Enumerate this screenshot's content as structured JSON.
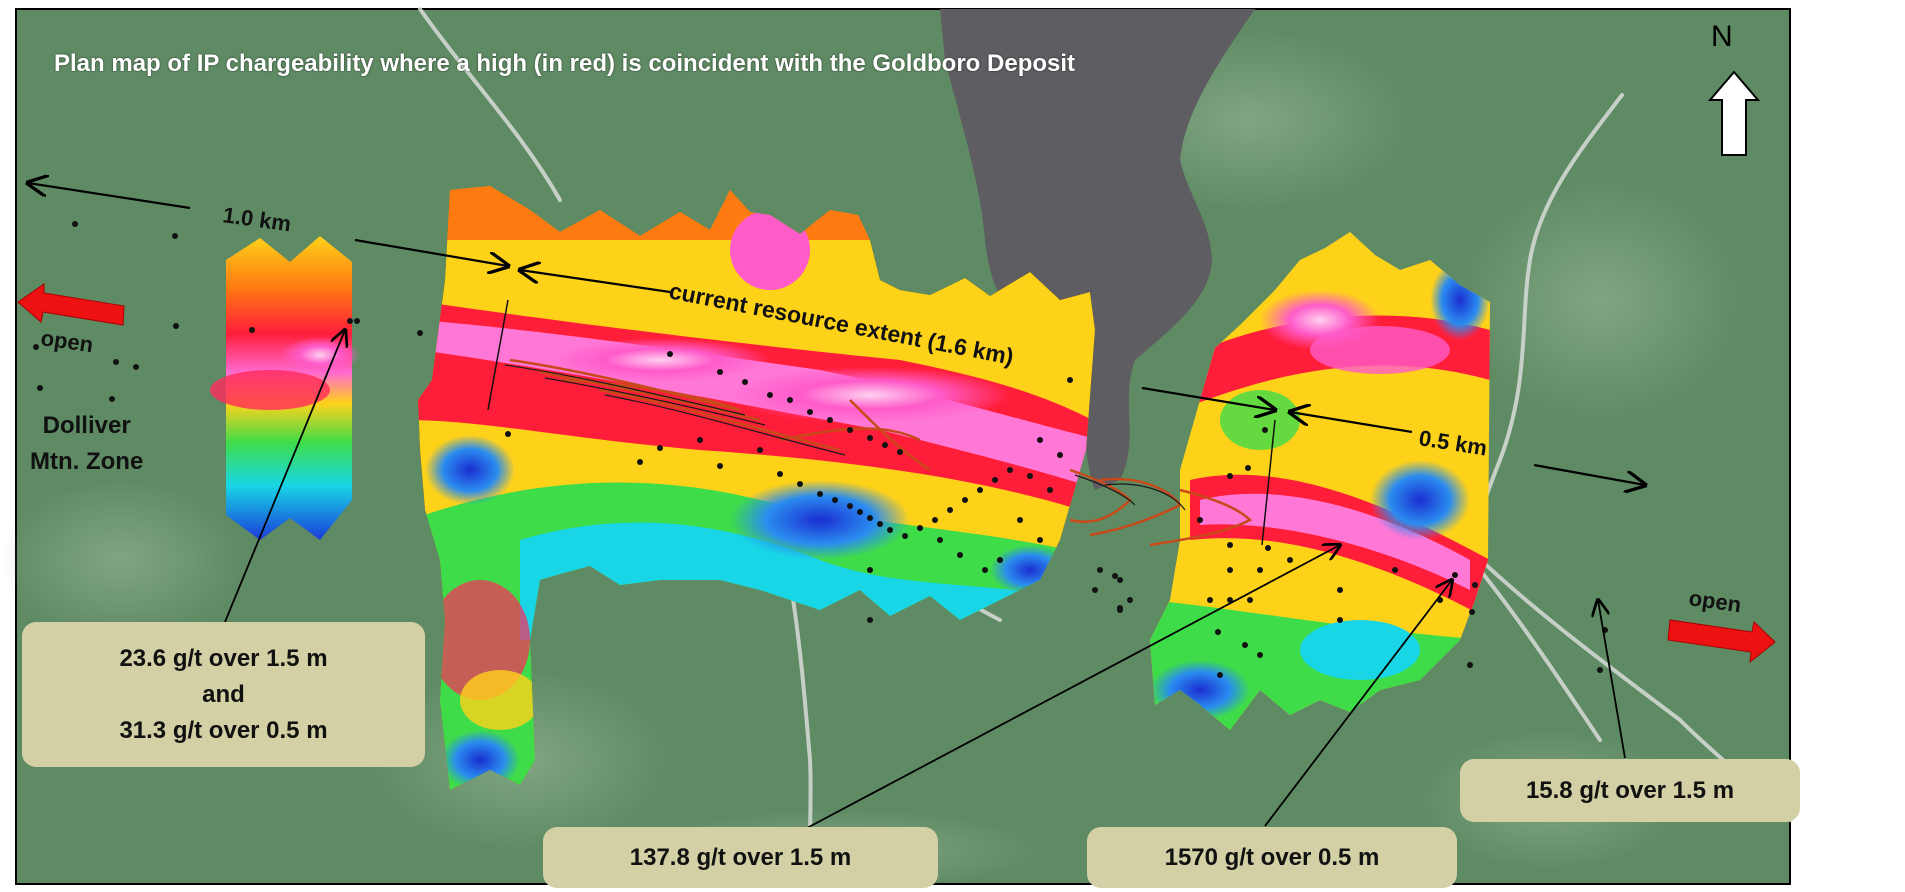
{
  "title": "Plan map of IP chargeability where a high (in red) is coincident with the Goldboro Deposit",
  "north_label": "N",
  "scale_1km": "1.0 km",
  "scale_05km": "0.5 km",
  "resource_extent": "current resource extent (1.6 km)",
  "open_left": "open",
  "open_right": "open",
  "zone_line1": "Dolliver",
  "zone_line2": "Mtn. Zone",
  "callouts": {
    "left_line1": "23.6 g/t over 1.5 m",
    "left_line2": "and",
    "left_line3": "31.3 g/t over 0.5 m",
    "center": "137.8 g/t over 1.5 m",
    "center_right": "1570 g/t over 0.5 m",
    "right": "15.8 g/t over 1.5 m"
  },
  "colors": {
    "forest": "#5f8b64",
    "lake": "#5d5d62",
    "arrow_red": "#ee1111",
    "callout_bg": "#d2d0a4",
    "chargeability_high": "#ff6ad0",
    "chargeability_low": "#1b3bd8"
  }
}
